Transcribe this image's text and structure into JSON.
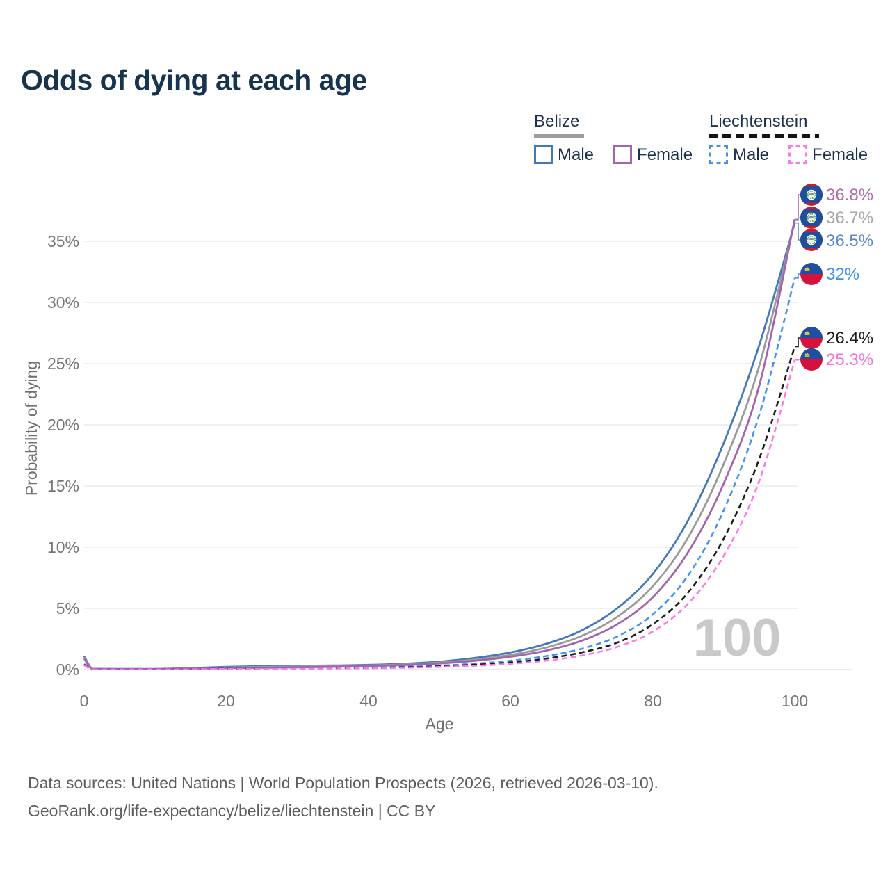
{
  "title": "Odds of dying at each age",
  "legend": {
    "groups": [
      {
        "country": "Belize",
        "style": "solid",
        "items": [
          {
            "label": "Male"
          },
          {
            "label": "Female"
          }
        ]
      },
      {
        "country": "Liechtenstein",
        "style": "dashed",
        "items": [
          {
            "label": "Male"
          },
          {
            "label": "Female"
          }
        ]
      }
    ]
  },
  "chart_data": {
    "type": "line",
    "x": [
      0,
      1,
      2,
      5,
      10,
      15,
      20,
      25,
      30,
      35,
      40,
      45,
      50,
      55,
      60,
      65,
      70,
      75,
      80,
      85,
      90,
      95,
      100
    ],
    "series": [
      {
        "name": "Belize Male",
        "country": "Belize",
        "sex": "Male",
        "style": "solid",
        "color": "#4478bd",
        "values": [
          1.1,
          0.12,
          0.06,
          0.05,
          0.05,
          0.12,
          0.22,
          0.27,
          0.3,
          0.33,
          0.38,
          0.48,
          0.65,
          0.95,
          1.4,
          2.1,
          3.2,
          5.0,
          7.8,
          12.2,
          18.5,
          26.5,
          36.5
        ]
      },
      {
        "name": "Belize Both sexes",
        "country": "Belize",
        "sex": "Both",
        "style": "solid",
        "color": "#9a9a9a",
        "values": [
          1.0,
          0.1,
          0.05,
          0.04,
          0.04,
          0.1,
          0.17,
          0.21,
          0.24,
          0.28,
          0.33,
          0.42,
          0.57,
          0.82,
          1.2,
          1.8,
          2.75,
          4.3,
          6.8,
          10.8,
          16.8,
          24.8,
          36.7
        ]
      },
      {
        "name": "Belize Female",
        "country": "Belize",
        "sex": "Female",
        "style": "solid",
        "color": "#a365aa",
        "values": [
          0.9,
          0.09,
          0.05,
          0.04,
          0.04,
          0.08,
          0.12,
          0.15,
          0.18,
          0.23,
          0.29,
          0.37,
          0.5,
          0.72,
          1.05,
          1.55,
          2.35,
          3.7,
          5.9,
          9.6,
          15.2,
          23.2,
          36.8
        ]
      },
      {
        "name": "Liechtenstein Male",
        "country": "Liechtenstein",
        "sex": "Male",
        "style": "dashed",
        "color": "#4191f0",
        "values": [
          0.45,
          0.04,
          0.02,
          0.02,
          0.02,
          0.05,
          0.08,
          0.09,
          0.1,
          0.12,
          0.16,
          0.22,
          0.32,
          0.48,
          0.72,
          1.1,
          1.7,
          2.7,
          4.5,
          7.7,
          13.0,
          20.8,
          32.0
        ]
      },
      {
        "name": "Liechtenstein Both sexes",
        "country": "Liechtenstein",
        "sex": "Both",
        "style": "dashed",
        "color": "#1a1a1a",
        "values": [
          0.4,
          0.035,
          0.02,
          0.015,
          0.02,
          0.04,
          0.06,
          0.07,
          0.08,
          0.1,
          0.13,
          0.18,
          0.26,
          0.39,
          0.58,
          0.9,
          1.4,
          2.2,
          3.7,
          6.3,
          10.7,
          17.2,
          26.4
        ]
      },
      {
        "name": "Liechtenstein Female",
        "country": "Liechtenstein",
        "sex": "Female",
        "style": "dashed",
        "color": "#fc7ae8",
        "values": [
          0.35,
          0.03,
          0.015,
          0.01,
          0.015,
          0.03,
          0.045,
          0.055,
          0.07,
          0.09,
          0.11,
          0.15,
          0.21,
          0.31,
          0.47,
          0.73,
          1.15,
          1.85,
          3.1,
          5.4,
          9.3,
          15.4,
          25.3
        ]
      }
    ],
    "x_axis": {
      "title": "Age",
      "min": 0,
      "max": 100,
      "ticks": [
        {
          "label": "0",
          "value": 0
        },
        {
          "label": "20",
          "value": 20
        },
        {
          "label": "40",
          "value": 40
        },
        {
          "label": "60",
          "value": 60
        },
        {
          "label": "80",
          "value": 80
        },
        {
          "label": "100",
          "value": 100
        }
      ]
    },
    "y_axis": {
      "title": "Probability of dying",
      "min": 0,
      "max": 38.5,
      "ticks": [
        {
          "label": "0%",
          "value": 0
        },
        {
          "label": "5%",
          "value": 5
        },
        {
          "label": "10%",
          "value": 10
        },
        {
          "label": "15%",
          "value": 15
        },
        {
          "label": "20%",
          "value": 20
        },
        {
          "label": "25%",
          "value": 25
        },
        {
          "label": "30%",
          "value": 30
        },
        {
          "label": "35%",
          "value": 35
        }
      ],
      "grid": true
    },
    "legend_position": "top-right",
    "watermark": "100",
    "annotations": [
      {
        "label": "36.8%",
        "value": 36.8,
        "series": "Belize Female",
        "flag": "belize",
        "color": "#b26bab"
      },
      {
        "label": "36.7%",
        "value": 36.7,
        "series": "Belize Both sexes",
        "flag": "belize",
        "color": "#a6a6a6"
      },
      {
        "label": "36.5%",
        "value": 36.5,
        "series": "Belize Male",
        "flag": "belize",
        "color": "#5d87cd"
      },
      {
        "label": "32%",
        "value": 32.0,
        "series": "Liechtenstein Male",
        "flag": "liechtenstein",
        "color": "#4191f0"
      },
      {
        "label": "26.4%",
        "value": 26.4,
        "series": "Liechtenstein Both sexes",
        "flag": "liechtenstein",
        "color": "#1a1a1a"
      },
      {
        "label": "25.3%",
        "value": 25.3,
        "series": "Liechtenstein Female",
        "flag": "liechtenstein",
        "color": "#fc6fd8"
      }
    ]
  },
  "footer": {
    "line1": "Data sources: United Nations | World Population Prospects (2026, retrieved 2026-03-10).",
    "line2": "GeoRank.org/life-expectancy/belize/liechtenstein | CC BY"
  }
}
